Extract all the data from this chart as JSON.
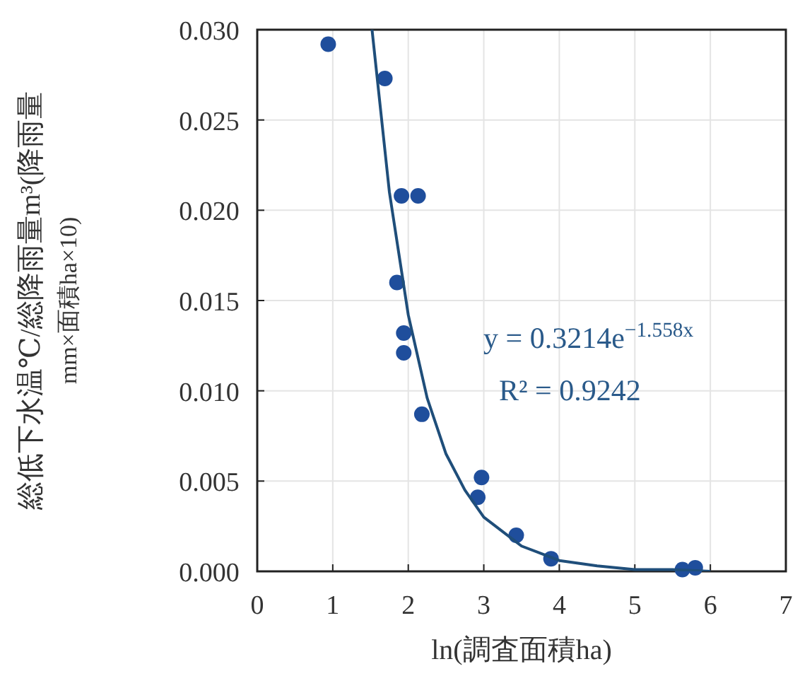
{
  "chart_data": {
    "type": "scatter",
    "xlabel": "ln(調査面積ha)",
    "ylabel": "総低下水温℃/総降雨量m³(降雨量\nmm×面積ha×10)",
    "xlim": [
      0,
      7
    ],
    "xticks": [
      0,
      1,
      2,
      3,
      4,
      5,
      6,
      7
    ],
    "ylim": [
      0,
      0.03
    ],
    "yticks": [
      {
        "value": 0,
        "label": "0.000"
      },
      {
        "value": 0.005,
        "label": "0.005"
      },
      {
        "value": 0.01,
        "label": "0.010"
      },
      {
        "value": 0.015,
        "label": "0.015"
      },
      {
        "value": 0.02,
        "label": "0.020"
      },
      {
        "value": 0.025,
        "label": "0.025"
      },
      {
        "value": 0.03,
        "label": "0.030"
      }
    ],
    "grid": true,
    "series": [
      {
        "marker": "circle",
        "color": "#1f4e9c",
        "x": [
          0.94,
          1.69,
          1.91,
          2.13,
          1.85,
          1.94,
          1.94,
          2.18,
          2.97,
          2.92,
          3.43,
          3.89,
          5.63,
          5.8
        ],
        "values": [
          0.0292,
          0.0273,
          0.0208,
          0.0208,
          0.016,
          0.0132,
          0.0121,
          0.0087,
          0.0052,
          0.0041,
          0.002,
          0.0007,
          0.0001,
          0.0002
        ]
      },
      {
        "type": "line",
        "marker": "none",
        "color": "#1f4e7a",
        "x": [
          1.52,
          1.75,
          2.0,
          2.25,
          2.5,
          2.75,
          3.0,
          3.5,
          4.0,
          4.5,
          5.0,
          5.5,
          6.0
        ],
        "values": [
          0.03,
          0.021,
          0.0142,
          0.0096,
          0.0065,
          0.0045,
          0.003,
          0.0014,
          0.0006,
          0.0003,
          0.0001,
          0.0001,
          0.0
        ]
      }
    ],
    "annotations": [
      "y = 0.3214e$^{−1.558x}$",
      "R² = 0.9242"
    ]
  }
}
